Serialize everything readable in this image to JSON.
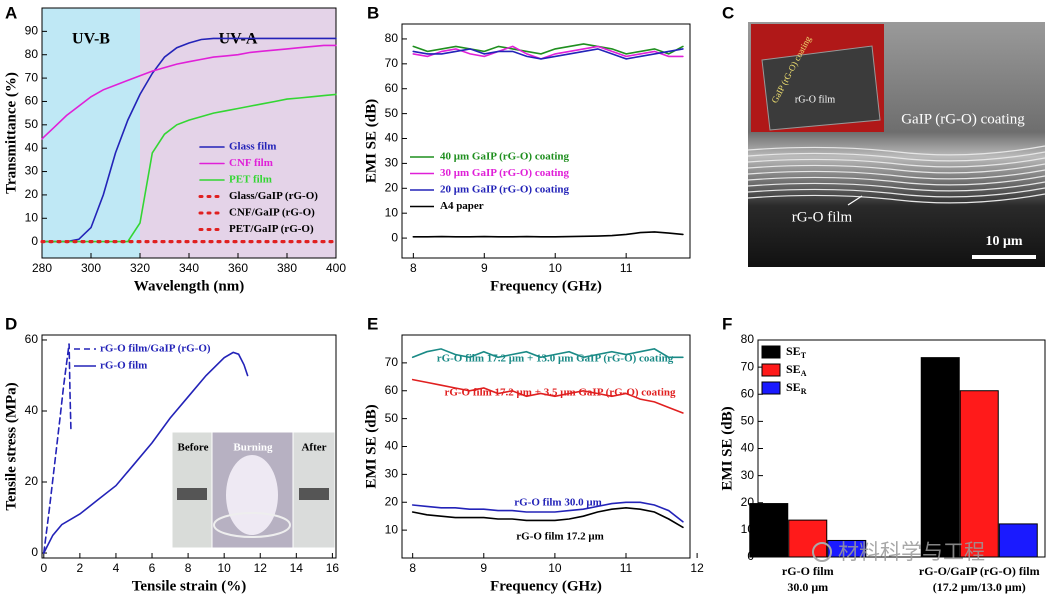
{
  "watermark": "材料科学与工程",
  "chart_data": [
    {
      "type": "line",
      "label": "A",
      "xlabel": "Wavelength (nm)",
      "ylabel": "Transmittance (%)",
      "regions": [
        {
          "name": "UV-B",
          "range": [
            280,
            320
          ],
          "color": "#bfe8f5"
        },
        {
          "name": "UV-A",
          "range": [
            320,
            400
          ],
          "color": "#e4d3e8"
        }
      ],
      "xlim": [
        280,
        400
      ],
      "xticks": [
        280,
        300,
        320,
        340,
        360,
        380,
        400
      ],
      "ylim": [
        -7,
        100
      ],
      "yticks": [
        0,
        10,
        20,
        30,
        40,
        50,
        60,
        70,
        80,
        90
      ],
      "x": [
        280,
        285,
        290,
        295,
        300,
        305,
        310,
        315,
        320,
        325,
        330,
        335,
        340,
        345,
        350,
        355,
        360,
        365,
        370,
        375,
        380,
        385,
        390,
        395,
        400
      ],
      "series": [
        {
          "name": "Glass film",
          "color": "#2323b8",
          "style": "solid",
          "values": [
            0,
            0,
            0,
            1,
            6,
            20,
            38,
            52,
            63,
            72,
            79,
            83,
            85,
            86.5,
            87,
            87,
            87,
            87,
            87,
            87,
            87,
            87,
            87,
            87,
            87
          ]
        },
        {
          "name": "CNF film",
          "color": "#e020d8",
          "style": "solid",
          "values": [
            44,
            49,
            54,
            58,
            62,
            65,
            67,
            69,
            71,
            73,
            74.5,
            76,
            77,
            78,
            79,
            79.5,
            80,
            81,
            81.5,
            82,
            82.5,
            83,
            83.5,
            84,
            84
          ]
        },
        {
          "name": "PET film",
          "color": "#33d633",
          "style": "solid",
          "values": [
            0,
            0,
            0,
            0,
            0,
            0,
            0,
            0,
            8,
            38,
            46,
            50,
            52,
            53.5,
            55,
            56,
            57,
            58,
            59,
            60,
            61,
            61.5,
            62,
            62.5,
            63
          ]
        },
        {
          "name": "Glass/GaIP (rG-O)",
          "color": "#e02020",
          "style": "dotted",
          "values": [
            0,
            0,
            0,
            0,
            0,
            0,
            0,
            0,
            0,
            0,
            0,
            0,
            0,
            0,
            0,
            0,
            0,
            0,
            0,
            0,
            0,
            0,
            0,
            0,
            0
          ]
        },
        {
          "name": "CNF/GaIP (rG-O)",
          "color": "#e02020",
          "style": "dotted",
          "values": [
            0,
            0,
            0,
            0,
            0,
            0,
            0,
            0,
            0,
            0,
            0,
            0,
            0,
            0,
            0,
            0,
            0,
            0,
            0,
            0,
            0,
            0,
            0,
            0,
            0
          ]
        },
        {
          "name": "PET/GaIP (rG-O)",
          "color": "#e02020",
          "style": "dotted",
          "values": [
            0,
            0,
            0,
            0,
            0,
            0,
            0,
            0,
            0,
            0,
            0,
            0,
            0,
            0,
            0,
            0,
            0,
            0,
            0,
            0,
            0,
            0,
            0,
            0,
            0
          ]
        }
      ]
    },
    {
      "type": "line",
      "label": "B",
      "xlabel": "Frequency (GHz)",
      "ylabel": "EMI SE (dB)",
      "xlim": [
        7.84,
        11.9
      ],
      "xticks": [
        8,
        9,
        10,
        11
      ],
      "ylim": [
        -8,
        86
      ],
      "yticks": [
        0,
        10,
        20,
        30,
        40,
        50,
        60,
        70,
        80
      ],
      "x": [
        8.0,
        8.2,
        8.4,
        8.6,
        8.8,
        9.0,
        9.2,
        9.4,
        9.6,
        9.8,
        10.0,
        10.2,
        10.4,
        10.6,
        10.8,
        11.0,
        11.2,
        11.4,
        11.6,
        11.8
      ],
      "series": [
        {
          "name": "40 μm GaIP (rG-O) coating",
          "color": "#1f8f1f",
          "style": "solid",
          "values": [
            77,
            75,
            76,
            77,
            76,
            75,
            77,
            76,
            75,
            74,
            76,
            77,
            78,
            77,
            76,
            74,
            75,
            76,
            74,
            77
          ]
        },
        {
          "name": "30 μm GaIP (rG-O) coating",
          "color": "#e020d8",
          "style": "solid",
          "values": [
            74,
            73,
            75,
            76,
            74,
            73,
            75,
            77,
            74,
            72,
            74,
            75,
            76,
            77,
            75,
            73,
            74,
            75,
            73,
            73
          ]
        },
        {
          "name": "20 μm GaIP (rG-O) coating",
          "color": "#2323b8",
          "style": "solid",
          "values": [
            75,
            74,
            74,
            75,
            76,
            74,
            75,
            75,
            73,
            72,
            73,
            74,
            75,
            76,
            74,
            72,
            73,
            74,
            75,
            76
          ]
        },
        {
          "name": "A4 paper",
          "color": "#000000",
          "style": "solid",
          "values": [
            0.5,
            0.5,
            0.6,
            0.5,
            0.5,
            0.6,
            0.5,
            0.5,
            0.6,
            0.5,
            0.5,
            0.6,
            0.7,
            0.8,
            1.0,
            1.5,
            2.2,
            2.5,
            2.0,
            1.5
          ]
        }
      ]
    },
    {
      "type": "image",
      "label": "C",
      "annotations": [
        "GaIP (rG-O) coating",
        "rG-O film",
        "GaIP (rG-O) coating",
        "rG-O film",
        "10 μm"
      ]
    },
    {
      "type": "line",
      "label": "D",
      "xlabel": "Tensile strain (%)",
      "ylabel": "Tensile stress (MPa)",
      "xlim": [
        -0.1,
        16.2
      ],
      "xticks": [
        0,
        2,
        4,
        6,
        8,
        10,
        12,
        14,
        16
      ],
      "ylim": [
        -1.4,
        61.4
      ],
      "yticks": [
        0,
        20,
        40,
        60
      ],
      "inset_labels": [
        "Before",
        "Burning",
        "After"
      ],
      "series": [
        {
          "name": "rG-O film/GaIP (rG-O)",
          "color": "#2323b8",
          "style": "dashed",
          "x": [
            0,
            0.3,
            0.6,
            0.9,
            1.1,
            1.3,
            1.4,
            1.45,
            1.5
          ],
          "values": [
            0,
            12,
            25,
            38,
            47,
            55,
            59,
            45,
            35
          ]
        },
        {
          "name": "rG-O film",
          "color": "#2323b8",
          "style": "solid",
          "x": [
            0,
            0.5,
            1,
            2,
            3,
            4,
            5,
            6,
            7,
            8,
            9,
            10,
            10.5,
            10.8,
            11.1,
            11.3
          ],
          "values": [
            0,
            5,
            8,
            11,
            15,
            19,
            25,
            31,
            38,
            44,
            50,
            55,
            56.5,
            56,
            53,
            50
          ]
        }
      ]
    },
    {
      "type": "line",
      "label": "E",
      "xlabel": "Frequency (GHz)",
      "ylabel": "EMI SE (dB)",
      "xlim": [
        7.85,
        11.9
      ],
      "xticks": [
        8,
        9,
        10,
        11,
        12
      ],
      "ylim": [
        0,
        80
      ],
      "yticks": [
        10,
        20,
        30,
        40,
        50,
        60,
        70
      ],
      "x": [
        8.0,
        8.2,
        8.4,
        8.6,
        8.8,
        9.0,
        9.2,
        9.4,
        9.6,
        9.8,
        10.0,
        10.2,
        10.4,
        10.6,
        10.8,
        11.0,
        11.2,
        11.4,
        11.6,
        11.8
      ],
      "series": [
        {
          "name": "rG-O film 17.2 μm  + 13.0 μm GaIP (rG-O) coating",
          "color": "#1a8a86",
          "style": "solid",
          "values": [
            72,
            74,
            75,
            73,
            72,
            74,
            72,
            73,
            74,
            72,
            73,
            74,
            72,
            73,
            74,
            73,
            74,
            75,
            72,
            72
          ]
        },
        {
          "name": "rG-O film 17.2 μm  + 3.5 μm GaIP (rG-O) coating",
          "color": "#e02020",
          "style": "solid",
          "values": [
            64,
            63,
            62,
            61,
            60,
            61,
            59,
            60,
            58,
            59,
            58,
            59,
            60,
            59,
            58,
            59,
            57,
            56,
            54,
            52
          ]
        },
        {
          "name": "rG-O film 30.0 μm",
          "color": "#2323b8",
          "style": "solid",
          "values": [
            19,
            18.5,
            18,
            18,
            17.5,
            17.5,
            17,
            17,
            16.5,
            16.5,
            16.5,
            17,
            17.5,
            18.5,
            19.5,
            20,
            20,
            19,
            17,
            13
          ]
        },
        {
          "name": "rG-O film 17.2 μm",
          "color": "#000000",
          "style": "solid",
          "values": [
            16.5,
            15.5,
            15,
            14.5,
            14.5,
            14.5,
            14,
            14,
            13.5,
            13.5,
            13.5,
            14,
            15,
            16.5,
            17.5,
            18,
            17.5,
            16.5,
            14,
            11
          ]
        }
      ]
    },
    {
      "type": "bar",
      "label": "F",
      "ylabel": "EMI SE (dB)",
      "ylim": [
        0,
        80
      ],
      "yticks": [
        0,
        10,
        20,
        30,
        40,
        50,
        60,
        70,
        80
      ],
      "categories": [
        [
          "rG-O film",
          "30.0 μm"
        ],
        [
          "rG-O/GaIP (rG-O)  film",
          "(17.2 μm/13.0 μm)"
        ]
      ],
      "series": [
        {
          "name": "SE",
          "subscript": "T",
          "color": "#000000",
          "values": [
            19.7,
            73.5
          ]
        },
        {
          "name": "SE",
          "subscript": "A",
          "color": "#ff1a1a",
          "values": [
            13.6,
            61.3
          ]
        },
        {
          "name": "SE",
          "subscript": "R",
          "color": "#1a1aff",
          "values": [
            6.1,
            12.2
          ]
        }
      ]
    }
  ]
}
